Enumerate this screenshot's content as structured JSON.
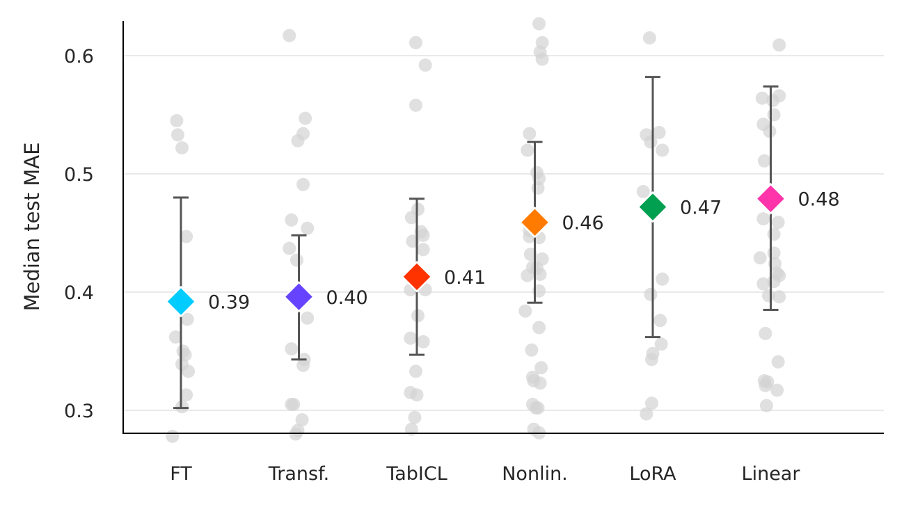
{
  "chart_data": {
    "type": "scatter",
    "title": "",
    "xlabel": "",
    "ylabel": "Median test MAE",
    "ylim": [
      0.28,
      0.63
    ],
    "yticks": [
      0.3,
      0.4,
      0.5,
      0.6
    ],
    "ytick_labels": [
      "0.3",
      "0.4",
      "0.5",
      "0.6"
    ],
    "grid": true,
    "legend": false,
    "categories": [
      "FT",
      "Transf.",
      "TabICL",
      "Nonlin.",
      "LoRA",
      "Linear"
    ],
    "series": [
      {
        "category": "FT",
        "color": "#00ccff",
        "median": 0.392,
        "median_label": "0.39",
        "ci_low": 0.302,
        "ci_high": 0.48,
        "points": [
          {
            "dx": -0.04,
            "y": 0.545
          },
          {
            "dx": -0.03,
            "y": 0.533
          },
          {
            "dx": 0.01,
            "y": 0.522
          },
          {
            "dx": 0.05,
            "y": 0.447
          },
          {
            "dx": 0.06,
            "y": 0.377
          },
          {
            "dx": -0.05,
            "y": 0.362
          },
          {
            "dx": 0.02,
            "y": 0.35
          },
          {
            "dx": 0.04,
            "y": 0.347
          },
          {
            "dx": 0.01,
            "y": 0.339
          },
          {
            "dx": 0.07,
            "y": 0.333
          },
          {
            "dx": 0.05,
            "y": 0.313
          },
          {
            "dx": 0.01,
            "y": 0.303
          },
          {
            "dx": -0.08,
            "y": 0.278
          }
        ]
      },
      {
        "category": "Transf.",
        "color": "#6644ff",
        "median": 0.396,
        "median_label": "0.40",
        "ci_low": 0.343,
        "ci_high": 0.448,
        "points": [
          {
            "dx": -0.09,
            "y": 0.617
          },
          {
            "dx": 0.06,
            "y": 0.547
          },
          {
            "dx": 0.04,
            "y": 0.534
          },
          {
            "dx": -0.01,
            "y": 0.528
          },
          {
            "dx": 0.04,
            "y": 0.491
          },
          {
            "dx": -0.07,
            "y": 0.461
          },
          {
            "dx": 0.08,
            "y": 0.454
          },
          {
            "dx": -0.09,
            "y": 0.437
          },
          {
            "dx": -0.02,
            "y": 0.427
          },
          {
            "dx": 0.08,
            "y": 0.378
          },
          {
            "dx": -0.07,
            "y": 0.352
          },
          {
            "dx": 0.05,
            "y": 0.343
          },
          {
            "dx": 0.04,
            "y": 0.338
          },
          {
            "dx": -0.07,
            "y": 0.305
          },
          {
            "dx": -0.05,
            "y": 0.305
          },
          {
            "dx": 0.03,
            "y": 0.292
          },
          {
            "dx": -0.01,
            "y": 0.283
          },
          {
            "dx": -0.03,
            "y": 0.28
          }
        ]
      },
      {
        "category": "TabICL",
        "color": "#ff3300",
        "median": 0.413,
        "median_label": "0.41",
        "ci_low": 0.347,
        "ci_high": 0.479,
        "points": [
          {
            "dx": -0.01,
            "y": 0.611
          },
          {
            "dx": 0.08,
            "y": 0.592
          },
          {
            "dx": -0.01,
            "y": 0.558
          },
          {
            "dx": 0.01,
            "y": 0.47
          },
          {
            "dx": -0.05,
            "y": 0.463
          },
          {
            "dx": 0.04,
            "y": 0.451
          },
          {
            "dx": 0.06,
            "y": 0.448
          },
          {
            "dx": -0.04,
            "y": 0.443
          },
          {
            "dx": 0.06,
            "y": 0.436
          },
          {
            "dx": -0.06,
            "y": 0.402
          },
          {
            "dx": 0.08,
            "y": 0.402
          },
          {
            "dx": 0.01,
            "y": 0.38
          },
          {
            "dx": -0.06,
            "y": 0.361
          },
          {
            "dx": 0.06,
            "y": 0.358
          },
          {
            "dx": -0.01,
            "y": 0.333
          },
          {
            "dx": -0.06,
            "y": 0.315
          },
          {
            "dx": 0.0,
            "y": 0.313
          },
          {
            "dx": -0.02,
            "y": 0.294
          },
          {
            "dx": -0.05,
            "y": 0.284
          }
        ]
      },
      {
        "category": "Nonlin.",
        "color": "#ff7b00",
        "median": 0.459,
        "median_label": "0.46",
        "ci_low": 0.391,
        "ci_high": 0.527,
        "points": [
          {
            "dx": 0.04,
            "y": 0.627
          },
          {
            "dx": 0.07,
            "y": 0.611
          },
          {
            "dx": 0.05,
            "y": 0.603
          },
          {
            "dx": 0.07,
            "y": 0.597
          },
          {
            "dx": -0.05,
            "y": 0.534
          },
          {
            "dx": -0.07,
            "y": 0.52
          },
          {
            "dx": 0.02,
            "y": 0.501
          },
          {
            "dx": 0.04,
            "y": 0.496
          },
          {
            "dx": 0.03,
            "y": 0.488
          },
          {
            "dx": -0.04,
            "y": 0.461
          },
          {
            "dx": -0.05,
            "y": 0.452
          },
          {
            "dx": -0.05,
            "y": 0.447
          },
          {
            "dx": 0.04,
            "y": 0.446
          },
          {
            "dx": -0.04,
            "y": 0.432
          },
          {
            "dx": 0.07,
            "y": 0.428
          },
          {
            "dx": -0.02,
            "y": 0.421
          },
          {
            "dx": 0.02,
            "y": 0.42
          },
          {
            "dx": -0.07,
            "y": 0.414
          },
          {
            "dx": 0.05,
            "y": 0.415
          },
          {
            "dx": 0.04,
            "y": 0.401
          },
          {
            "dx": -0.09,
            "y": 0.384
          },
          {
            "dx": 0.04,
            "y": 0.37
          },
          {
            "dx": -0.03,
            "y": 0.351
          },
          {
            "dx": 0.06,
            "y": 0.336
          },
          {
            "dx": -0.02,
            "y": 0.328
          },
          {
            "dx": -0.01,
            "y": 0.325
          },
          {
            "dx": 0.05,
            "y": 0.323
          },
          {
            "dx": -0.02,
            "y": 0.305
          },
          {
            "dx": 0.01,
            "y": 0.302
          },
          {
            "dx": 0.03,
            "y": 0.302
          },
          {
            "dx": -0.01,
            "y": 0.284
          },
          {
            "dx": 0.04,
            "y": 0.281
          }
        ]
      },
      {
        "category": "LoRA",
        "color": "#00a050",
        "median": 0.472,
        "median_label": "0.47",
        "ci_low": 0.362,
        "ci_high": 0.582,
        "points": [
          {
            "dx": -0.03,
            "y": 0.615
          },
          {
            "dx": -0.06,
            "y": 0.533
          },
          {
            "dx": 0.06,
            "y": 0.535
          },
          {
            "dx": -0.02,
            "y": 0.527
          },
          {
            "dx": 0.09,
            "y": 0.52
          },
          {
            "dx": -0.09,
            "y": 0.485
          },
          {
            "dx": 0.09,
            "y": 0.411
          },
          {
            "dx": -0.02,
            "y": 0.398
          },
          {
            "dx": 0.07,
            "y": 0.376
          },
          {
            "dx": 0.08,
            "y": 0.356
          },
          {
            "dx": 0.0,
            "y": 0.348
          },
          {
            "dx": -0.01,
            "y": 0.343
          },
          {
            "dx": -0.01,
            "y": 0.306
          },
          {
            "dx": -0.06,
            "y": 0.297
          }
        ]
      },
      {
        "category": "Linear",
        "color": "#ff33aa",
        "median": 0.479,
        "median_label": "0.48",
        "ci_low": 0.385,
        "ci_high": 0.574,
        "points": [
          {
            "dx": 0.08,
            "y": 0.609
          },
          {
            "dx": 0.08,
            "y": 0.566
          },
          {
            "dx": -0.08,
            "y": 0.564
          },
          {
            "dx": 0.02,
            "y": 0.562
          },
          {
            "dx": 0.03,
            "y": 0.55
          },
          {
            "dx": -0.07,
            "y": 0.542
          },
          {
            "dx": -0.01,
            "y": 0.536
          },
          {
            "dx": -0.06,
            "y": 0.511
          },
          {
            "dx": -0.07,
            "y": 0.462
          },
          {
            "dx": 0.07,
            "y": 0.459
          },
          {
            "dx": 0.03,
            "y": 0.449
          },
          {
            "dx": 0.03,
            "y": 0.433
          },
          {
            "dx": -0.1,
            "y": 0.429
          },
          {
            "dx": 0.04,
            "y": 0.424
          },
          {
            "dx": 0.06,
            "y": 0.416
          },
          {
            "dx": 0.08,
            "y": 0.414
          },
          {
            "dx": -0.07,
            "y": 0.407
          },
          {
            "dx": 0.03,
            "y": 0.409
          },
          {
            "dx": 0.08,
            "y": 0.396
          },
          {
            "dx": -0.02,
            "y": 0.397
          },
          {
            "dx": -0.05,
            "y": 0.365
          },
          {
            "dx": 0.07,
            "y": 0.341
          },
          {
            "dx": -0.06,
            "y": 0.325
          },
          {
            "dx": -0.03,
            "y": 0.324
          },
          {
            "dx": -0.05,
            "y": 0.321
          },
          {
            "dx": 0.06,
            "y": 0.317
          },
          {
            "dx": -0.04,
            "y": 0.304
          }
        ]
      }
    ]
  }
}
